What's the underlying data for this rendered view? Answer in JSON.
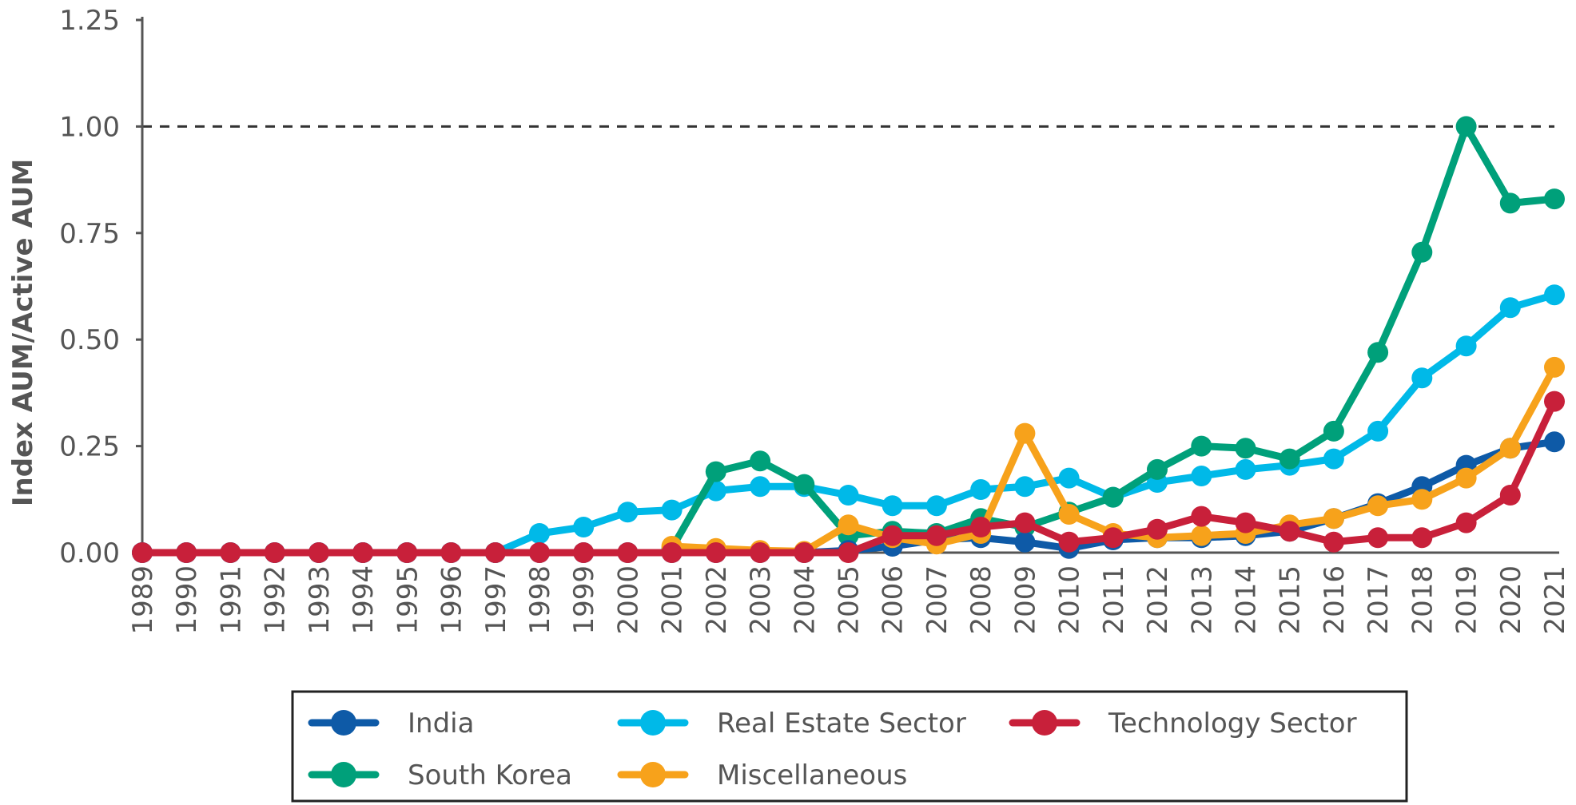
{
  "chart_data": {
    "type": "line",
    "title": "",
    "xlabel": "",
    "ylabel": "Index AUM/Active AUM",
    "ylim": [
      0,
      1.25
    ],
    "yticks": [
      "0.00",
      "0.25",
      "0.50",
      "0.75",
      "1.00",
      "1.25"
    ],
    "reference_line": {
      "y": 1.0,
      "style": "dashed"
    },
    "grid": false,
    "legend_position": "bottom",
    "x": [
      "1989",
      "1990",
      "1991",
      "1992",
      "1993",
      "1994",
      "1995",
      "1996",
      "1997",
      "1998",
      "1999",
      "2000",
      "2001",
      "2002",
      "2003",
      "2004",
      "2005",
      "2006",
      "2007",
      "2008",
      "2009",
      "2010",
      "2011",
      "2012",
      "2013",
      "2014",
      "2015",
      "2016",
      "2017",
      "2018",
      "2019",
      "2020",
      "2021"
    ],
    "series": [
      {
        "name": "India",
        "color": "#0E5AA7",
        "values": [
          0,
          0,
          0,
          0,
          0,
          0,
          0,
          0,
          0,
          0,
          0,
          0,
          0,
          0,
          0,
          0,
          0.005,
          0.015,
          0.03,
          0.035,
          0.025,
          0.01,
          0.03,
          0.035,
          0.035,
          0.04,
          0.05,
          0.08,
          0.115,
          0.155,
          0.205,
          0.245,
          0.26
        ]
      },
      {
        "name": "South Korea",
        "color": "#00A07A",
        "values": [
          null,
          null,
          null,
          null,
          null,
          null,
          null,
          null,
          null,
          null,
          null,
          null,
          0.01,
          0.19,
          0.215,
          0.16,
          0.04,
          0.05,
          0.045,
          0.08,
          0.06,
          0.095,
          0.13,
          0.195,
          0.25,
          0.245,
          0.22,
          0.285,
          0.47,
          0.705,
          1.0,
          0.82,
          0.83
        ]
      },
      {
        "name": "Real Estate Sector",
        "color": "#00B9E8",
        "values": [
          0,
          0,
          0,
          0,
          0,
          0,
          0,
          0,
          0,
          0.045,
          0.06,
          0.095,
          0.1,
          0.145,
          0.155,
          0.155,
          0.135,
          0.11,
          0.11,
          0.148,
          0.155,
          0.175,
          0.13,
          0.165,
          0.18,
          0.195,
          0.205,
          0.22,
          0.285,
          0.41,
          0.485,
          0.575,
          0.605
        ]
      },
      {
        "name": "Miscellaneous",
        "color": "#F7A21B",
        "values": [
          null,
          null,
          null,
          null,
          null,
          null,
          null,
          null,
          null,
          null,
          null,
          null,
          0.015,
          0.01,
          0.005,
          0.003,
          0.065,
          0.035,
          0.02,
          0.045,
          0.28,
          0.09,
          0.045,
          0.035,
          0.04,
          0.045,
          0.065,
          0.08,
          0.11,
          0.125,
          0.175,
          0.245,
          0.435
        ]
      },
      {
        "name": "Technology Sector",
        "color": "#C8203A",
        "values": [
          0,
          0,
          0,
          0,
          0,
          0,
          0,
          0,
          0,
          0,
          0,
          0,
          0,
          0,
          0,
          0,
          0,
          0.04,
          0.04,
          0.06,
          0.07,
          0.025,
          0.035,
          0.055,
          0.085,
          0.07,
          0.05,
          0.025,
          0.035,
          0.035,
          0.07,
          0.135,
          0.355
        ]
      }
    ],
    "legend": [
      {
        "name": "India",
        "color": "#0E5AA7"
      },
      {
        "name": "Real Estate Sector",
        "color": "#00B9E8"
      },
      {
        "name": "Technology Sector",
        "color": "#C8203A"
      },
      {
        "name": "South Korea",
        "color": "#00A07A"
      },
      {
        "name": "Miscellaneous",
        "color": "#F7A21B"
      }
    ],
    "draw_order": [
      "Real Estate Sector",
      "South Korea",
      "India",
      "Miscellaneous",
      "Technology Sector"
    ]
  }
}
